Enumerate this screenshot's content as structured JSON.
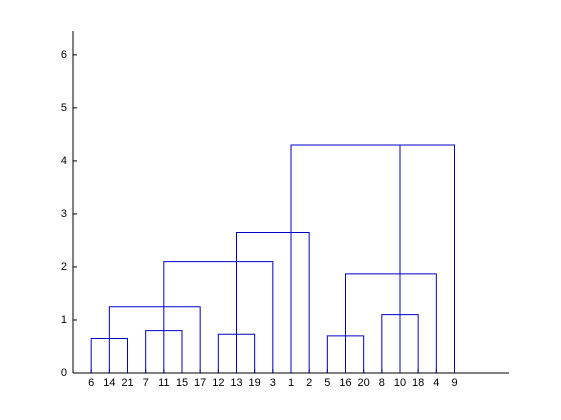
{
  "chart_data": {
    "type": "dendrogram",
    "color": "#0000cc",
    "categories": [
      "6",
      "14",
      "21",
      "7",
      "11",
      "15",
      "17",
      "12",
      "13",
      "19",
      "3",
      "1",
      "2",
      "5",
      "16",
      "20",
      "8",
      "10",
      "18",
      "4",
      "9"
    ],
    "links": [
      {
        "left": 1,
        "right": 3,
        "left_base": 0,
        "right_base": 0,
        "height": 0.65
      },
      {
        "left": 2,
        "right": 7,
        "left_base": 0,
        "right_base": 0,
        "height": 1.25
      },
      {
        "left": 4,
        "right": 6,
        "left_base": 0,
        "right_base": 0,
        "height": 0.8
      },
      {
        "left": 5,
        "right": 11,
        "left_base": 0,
        "right_base": 0,
        "height": 2.1
      },
      {
        "left": 8,
        "right": 10,
        "left_base": 0,
        "right_base": 0,
        "height": 0.73
      },
      {
        "left": 9,
        "right": 13,
        "left_base": 0,
        "right_base": 0,
        "height": 2.65
      },
      {
        "left": 12,
        "right": 21,
        "left_base": 0,
        "right_base": 0,
        "height": 4.3
      },
      {
        "left": 14,
        "right": 16,
        "left_base": 0,
        "right_base": 0,
        "height": 0.7
      },
      {
        "left": 15,
        "right": 20,
        "left_base": 0,
        "right_base": 0,
        "height": 1.87
      },
      {
        "left": 17,
        "right": 19,
        "left_base": 0,
        "right_base": 0,
        "height": 1.1
      },
      {
        "left": 18,
        "right": 18,
        "left_base": 0,
        "right_base": 0,
        "height": 4.3
      }
    ],
    "xlim": [
      0,
      24
    ],
    "ylim": [
      0,
      6.45
    ],
    "yticks": [
      0,
      1,
      2,
      3,
      4,
      5,
      6
    ]
  }
}
